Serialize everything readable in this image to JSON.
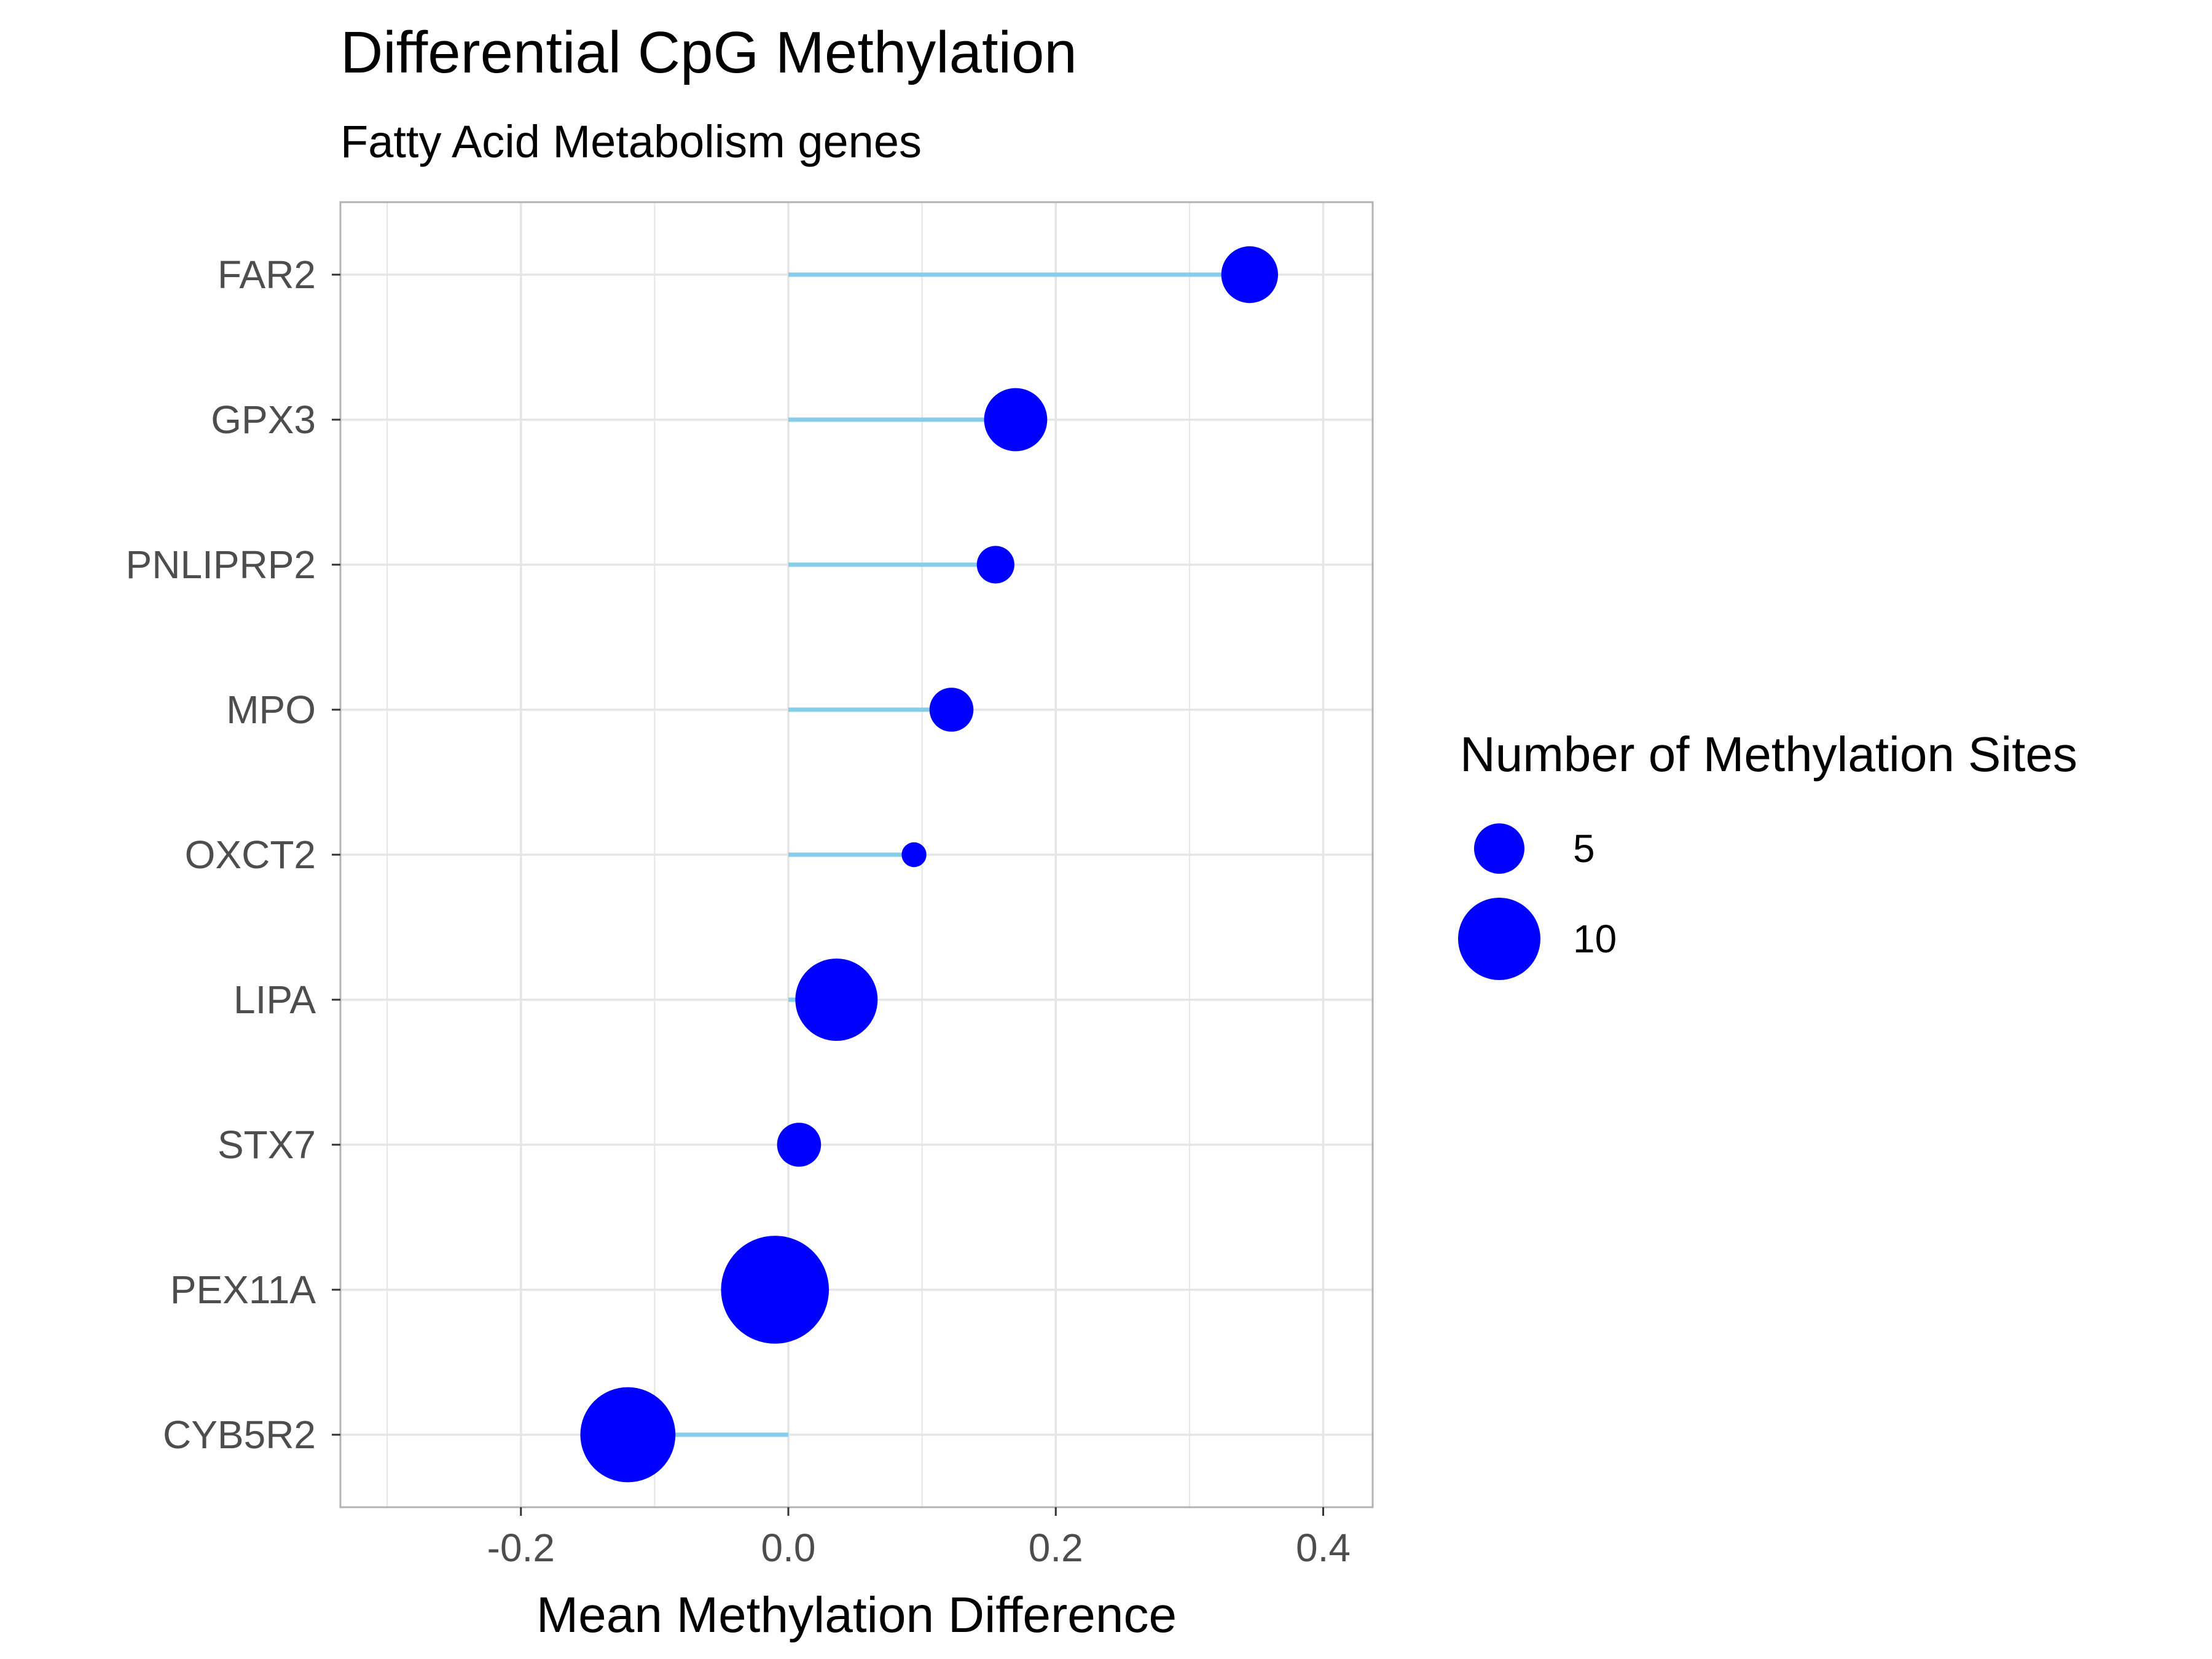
{
  "chart_data": {
    "type": "lollipop",
    "title": "Differential CpG Methylation",
    "subtitle": "Fatty Acid Metabolism genes",
    "xlabel": "Mean Methylation Difference",
    "ylabel": "",
    "xlim": [
      -0.335,
      0.437
    ],
    "xticks": [
      -0.2,
      0.0,
      0.2,
      0.4
    ],
    "xtick_labels": [
      "-0.2",
      "0.0",
      "0.2",
      "0.4"
    ],
    "grid": true,
    "categories": [
      "FAR2",
      "GPX3",
      "PNLIPRP2",
      "MPO",
      "OXCT2",
      "LIPA",
      "STX7",
      "PEX11A",
      "CYB5R2"
    ],
    "values": [
      0.345,
      0.17,
      0.155,
      0.122,
      0.094,
      0.036,
      0.008,
      -0.01,
      -0.12
    ],
    "sizes": [
      6,
      7,
      3,
      4,
      1,
      10,
      4,
      14,
      12
    ],
    "legend": {
      "title": "Number of Methylation Sites",
      "position": "right",
      "entries": [
        {
          "label": "5",
          "size": 5
        },
        {
          "label": "10",
          "size": 10
        }
      ]
    },
    "colors": {
      "point": "#0000ff",
      "segment": "#87ceeb",
      "grid": "#e5e5e5",
      "panel_border": "#b3b3b3"
    }
  }
}
